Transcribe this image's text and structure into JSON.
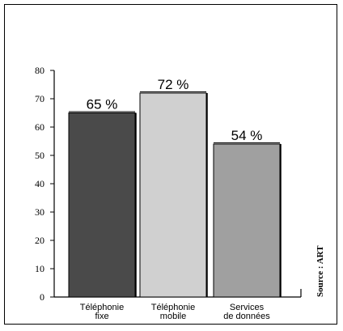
{
  "chart_data": {
    "type": "bar",
    "categories": [
      [
        "Téléphonie",
        "fixe"
      ],
      [
        "Téléphonie",
        "mobile"
      ],
      [
        "Services",
        "de données"
      ]
    ],
    "values": [
      65,
      72,
      54
    ],
    "data_labels": [
      "65 %",
      "72 %",
      "54 %"
    ],
    "bar_colors": [
      "#4a4a4a",
      "#d0d0d0",
      "#a0a0a0"
    ],
    "ylim": [
      0,
      80
    ],
    "yticks": [
      0,
      10,
      20,
      30,
      40,
      50,
      60,
      70,
      80
    ],
    "source": "Source : ART",
    "grid": false
  }
}
